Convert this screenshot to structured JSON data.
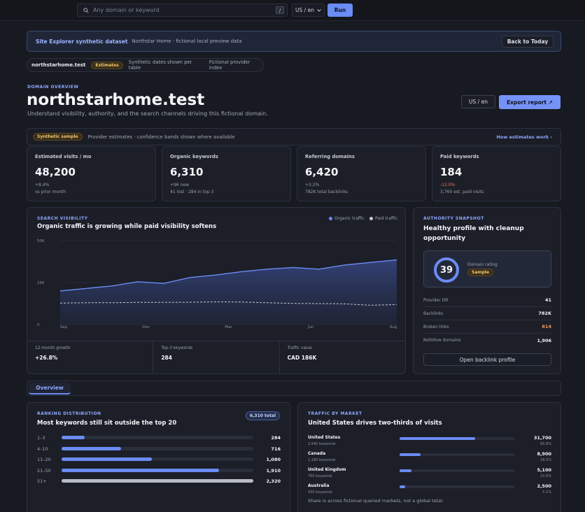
{
  "topbar": {
    "search_placeholder": "Any domain or keyword",
    "shortcut": "/",
    "locale": "US / en",
    "run_label": "Run"
  },
  "banner": {
    "title": "Site Explorer synthetic dataset",
    "text": "Northstar Home · fictional local preview data",
    "back_label": "Back to Today"
  },
  "chips": {
    "domain": "northstarhome.test",
    "badge": "Estimates",
    "note1": "Synthetic dates shown per table",
    "note2": "Fictional provider index"
  },
  "header": {
    "overline": "DOMAIN OVERVIEW",
    "title": "northstarhome.test",
    "subtitle": "Understand visibility, authority, and the search channels driving this fictional domain.",
    "locale_label": "US / en",
    "export_label": "Export report ↗"
  },
  "sample_row": {
    "badge": "Synthetic sample",
    "text": "Provider estimates · confidence bands shown where available",
    "link": "How estimates work ›"
  },
  "kpis": [
    {
      "label": "Estimated visits / mo",
      "value": "48,200",
      "delta": "+8.4%",
      "sub": "vs prior month"
    },
    {
      "label": "Organic keywords",
      "value": "6,310",
      "delta": "+96 new",
      "sub": "41 lost · 284 in top 3"
    },
    {
      "label": "Referring domains",
      "value": "6,420",
      "delta": "+3.2%",
      "sub": "782K total backlinks"
    },
    {
      "label": "Paid keywords",
      "value": "184",
      "delta": "-12.0%",
      "sub": "3,760 est. paid visits"
    }
  ],
  "visibility": {
    "overline": "SEARCH VISIBILITY",
    "title": "Organic traffic is growing while paid visibility softens",
    "legend_organic": "Organic traffic",
    "legend_paid": "Paid traffic",
    "stats": [
      {
        "label": "12-month growth",
        "value": "+26.8%"
      },
      {
        "label": "Top-3 keywords",
        "value": "284"
      },
      {
        "label": "Traffic value",
        "value": "CAD 186K"
      }
    ]
  },
  "chart_data": {
    "type": "area",
    "title": "Organic traffic is growing while paid visibility softens",
    "x_ticks": [
      "Sep",
      "Dec",
      "Mar",
      "Jun",
      "Aug"
    ],
    "y_ticks": [
      "50K",
      "25K",
      "0"
    ],
    "ylim": [
      0,
      50000
    ],
    "grid": true,
    "legend": "top-right",
    "series": [
      {
        "name": "Organic traffic",
        "color": "#6b8bf5",
        "values": [
          20000,
          21500,
          23000,
          25500,
          24500,
          28000,
          29500,
          31500,
          33000,
          34000,
          33000,
          35500,
          37000,
          38500
        ]
      },
      {
        "name": "Paid traffic",
        "color": "#c5c9d3",
        "dashed": true,
        "values": [
          12800,
          13000,
          13000,
          13200,
          13200,
          13300,
          13500,
          13400,
          13000,
          12600,
          12500,
          12300,
          11500,
          11900
        ]
      }
    ]
  },
  "authority": {
    "overline": "AUTHORITY SNAPSHOT",
    "title": "Healthy profile with cleanup opportunity",
    "score": "39",
    "score_label": "Domain rating",
    "badge": "Sample",
    "rows": [
      {
        "label": "Provider DR",
        "value": "41"
      },
      {
        "label": "Backlinks",
        "value": "782K"
      },
      {
        "label": "Broken links",
        "value": "814"
      },
      {
        "label": "Nofollow domains",
        "value": "1,906"
      }
    ],
    "button": "Open backlink profile"
  },
  "tabs": {
    "overview": "Overview"
  },
  "ranking": {
    "overline": "RANKING DISTRIBUTION",
    "title": "Most keywords still sit outside the top 20",
    "total_badge": "6,310 total",
    "rows": [
      {
        "label": "1–3",
        "value": "284",
        "fraction": 0.12
      },
      {
        "label": "4–10",
        "value": "716",
        "fraction": 0.31
      },
      {
        "label": "11–20",
        "value": "1,080",
        "fraction": 0.47
      },
      {
        "label": "21–50",
        "value": "1,910",
        "fraction": 0.82
      },
      {
        "label": "51+",
        "value": "2,320",
        "fraction": 1.0
      }
    ]
  },
  "market": {
    "overline": "TRAFFIC BY MARKET",
    "title": "United States drives two-thirds of visits",
    "rows": [
      {
        "name": "United States",
        "kw": "2,940 keywords",
        "value": "31,700",
        "pct": "65.8%",
        "fraction": 0.658
      },
      {
        "name": "Canada",
        "kw": "1,180 keywords",
        "value": "8,900",
        "pct": "18.5%",
        "fraction": 0.185
      },
      {
        "name": "United Kingdom",
        "kw": "760 keywords",
        "value": "5,100",
        "pct": "10.6%",
        "fraction": 0.106
      },
      {
        "name": "Australia",
        "kw": "430 keywords",
        "value": "2,500",
        "pct": "5.1%",
        "fraction": 0.051
      }
    ],
    "note": "Share is across fictional queried markets, not a global total."
  }
}
